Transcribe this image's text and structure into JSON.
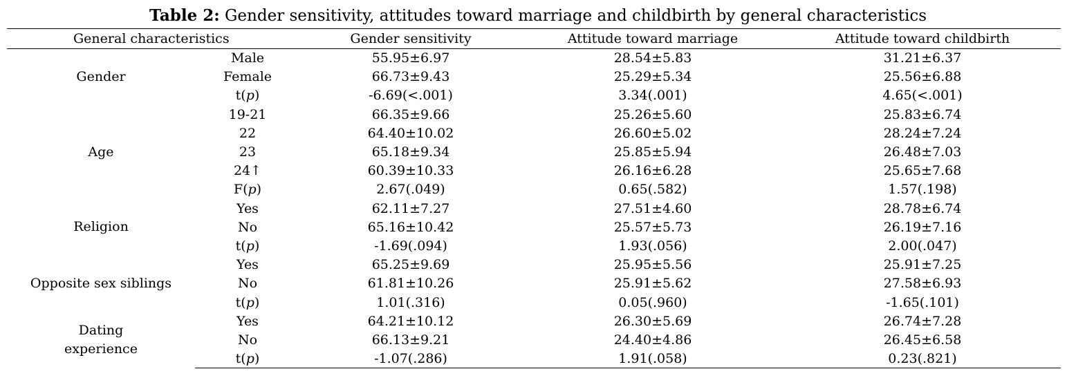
{
  "title": {
    "lead": "Table 2:",
    "text": " Gender sensitivity, attitudes toward marriage and childbirth by general characteristics"
  },
  "header": {
    "characteristics": "General characteristics",
    "gender_sensitivity": "Gender sensitivity",
    "attitude_marriage": "Attitude toward marriage",
    "attitude_childbirth": "Attitude toward childbirth"
  },
  "groups": [
    {
      "label_lines": [
        "Gender"
      ],
      "rows": [
        {
          "category": "Male",
          "sensitivity": "55.95±6.97",
          "marriage": "28.54±5.83",
          "childbirth": "31.21±6.37"
        },
        {
          "category": "Female",
          "sensitivity": "66.73±9.43",
          "marriage": "25.29±5.34",
          "childbirth": "25.56±6.88"
        },
        {
          "category_prefix": "t(",
          "category_italic": "p",
          "category_suffix": ")",
          "sensitivity": "-6.69(<.001)",
          "marriage": "3.34(.001)",
          "childbirth": "4.65(<.001)"
        }
      ]
    },
    {
      "label_lines": [
        "Age"
      ],
      "rows": [
        {
          "category": "19-21",
          "sensitivity": "66.35±9.66",
          "marriage": "25.26±5.60",
          "childbirth": "25.83±6.74"
        },
        {
          "category": "22",
          "sensitivity": "64.40±10.02",
          "marriage": "26.60±5.02",
          "childbirth": "28.24±7.24"
        },
        {
          "category": "23",
          "sensitivity": "65.18±9.34",
          "marriage": "25.85±5.94",
          "childbirth": "26.48±7.03"
        },
        {
          "category": "24↑",
          "sensitivity": "60.39±10.33",
          "marriage": "26.16±6.28",
          "childbirth": "25.65±7.68"
        },
        {
          "category_prefix": "F(",
          "category_italic": "p",
          "category_suffix": ")",
          "sensitivity": "2.67(.049)",
          "marriage": "0.65(.582)",
          "childbirth": "1.57(.198)"
        }
      ]
    },
    {
      "label_lines": [
        "Religion"
      ],
      "rows": [
        {
          "category": "Yes",
          "sensitivity": "62.11±7.27",
          "marriage": "27.51±4.60",
          "childbirth": "28.78±6.74"
        },
        {
          "category": "No",
          "sensitivity": "65.16±10.42",
          "marriage": "25.57±5.73",
          "childbirth": "26.19±7.16"
        },
        {
          "category_prefix": "t(",
          "category_italic": "p",
          "category_suffix": ")",
          "sensitivity": "-1.69(.094)",
          "marriage": "1.93(.056)",
          "childbirth": "2.00(.047)"
        }
      ]
    },
    {
      "label_lines": [
        "Opposite sex siblings"
      ],
      "rows": [
        {
          "category": "Yes",
          "sensitivity": "65.25±9.69",
          "marriage": "25.95±5.56",
          "childbirth": "25.91±7.25"
        },
        {
          "category": "No",
          "sensitivity": "61.81±10.26",
          "marriage": "25.91±5.62",
          "childbirth": "27.58±6.93"
        },
        {
          "category_prefix": "t(",
          "category_italic": "p",
          "category_suffix": ")",
          "sensitivity": "1.01(.316)",
          "marriage": "0.05(.960)",
          "childbirth": "-1.65(.101)"
        }
      ]
    },
    {
      "label_lines": [
        "Dating",
        "experience"
      ],
      "rows": [
        {
          "category": "Yes",
          "sensitivity": "64.21±10.12",
          "marriage": "26.30±5.69",
          "childbirth": "26.74±7.28"
        },
        {
          "category": "No",
          "sensitivity": "66.13±9.21",
          "marriage": "24.40±4.86",
          "childbirth": "26.45±6.58"
        },
        {
          "category_prefix": "t(",
          "category_italic": "p",
          "category_suffix": ")",
          "sensitivity": "-1.07(.286)",
          "marriage": "1.91(.058)",
          "childbirth": "0.23(.821)"
        }
      ]
    }
  ]
}
